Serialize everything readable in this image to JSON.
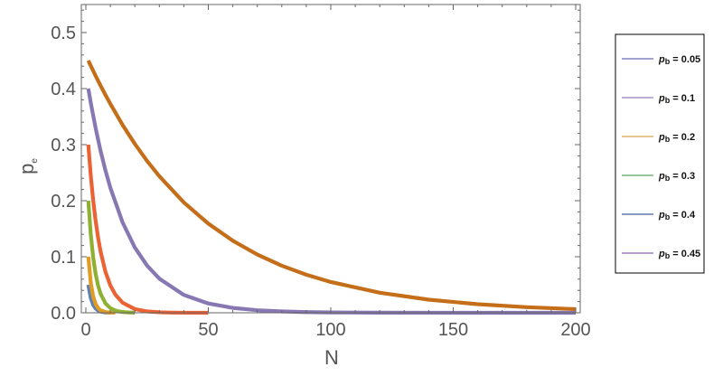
{
  "chart_data": {
    "type": "line",
    "xlabel": "N",
    "ylabel": {
      "main": "p",
      "sub": "e"
    },
    "xlim": [
      0,
      200
    ],
    "ylim": [
      0,
      0.55
    ],
    "x_ticks": [
      0,
      50,
      100,
      150,
      200
    ],
    "y_ticks": [
      0.0,
      0.1,
      0.2,
      0.3,
      0.4,
      0.5
    ],
    "x_tick_labels": [
      "0",
      "50",
      "100",
      "150",
      "200"
    ],
    "y_tick_labels": [
      "0.0",
      "0.1",
      "0.2",
      "0.3",
      "0.4",
      "0.5"
    ],
    "grid": false,
    "legend_position": "right",
    "legend_prefix": {
      "main": "p",
      "sub": "b"
    },
    "series": [
      {
        "label": " = 0.05",
        "pb": 0.05,
        "legend_color": "#6a6ab4",
        "line_color": "#5e81b5",
        "x": [
          1,
          2,
          3,
          4,
          5,
          6,
          8,
          10
        ],
        "y": [
          0.05,
          0.0263,
          0.0141,
          0.0076,
          0.0041,
          0.0022,
          0.0006,
          0.0002
        ]
      },
      {
        "label": " = 0.1",
        "pb": 0.1,
        "legend_color": "#9b7ec4",
        "line_color": "#e19c24",
        "x": [
          1,
          2,
          3,
          4,
          5,
          6,
          8,
          10,
          12
        ],
        "y": [
          0.1,
          0.0536,
          0.0288,
          0.0155,
          0.0083,
          0.0045,
          0.0013,
          0.0004,
          0.0001
        ]
      },
      {
        "label": " = 0.2",
        "pb": 0.2,
        "legend_color": "#d9a24e",
        "line_color": "#8fb032",
        "x": [
          1,
          2,
          3,
          4,
          5,
          6,
          8,
          10,
          12,
          14,
          16,
          18,
          20
        ],
        "y": [
          0.2,
          0.1404,
          0.0985,
          0.0691,
          0.0485,
          0.034,
          0.0168,
          0.0083,
          0.0041,
          0.002,
          0.001,
          0.0005,
          0.0002
        ]
      },
      {
        "label": " = 0.3",
        "pb": 0.3,
        "legend_color": "#5aa465",
        "line_color": "#eb6235",
        "x": [
          1,
          2,
          3,
          4,
          5,
          6,
          8,
          10,
          12,
          15,
          20,
          25,
          30,
          35,
          40,
          50
        ],
        "y": [
          0.3,
          0.2452,
          0.2004,
          0.1638,
          0.1339,
          0.1094,
          0.0731,
          0.0488,
          0.0326,
          0.0179,
          0.0066,
          0.0024,
          0.0009,
          0.0003,
          0.0001,
          0.0
        ]
      },
      {
        "label": " = 0.4",
        "pb": 0.4,
        "legend_color": "#3f5ea0",
        "line_color": "#8778b3",
        "x": [
          1,
          2,
          4,
          6,
          8,
          10,
          15,
          20,
          25,
          30,
          40,
          50,
          60,
          70,
          80,
          90,
          100,
          120,
          140,
          160,
          180,
          200
        ],
        "y": [
          0.4,
          0.3748,
          0.3292,
          0.2891,
          0.2539,
          0.223,
          0.1612,
          0.1165,
          0.0842,
          0.0609,
          0.0318,
          0.0166,
          0.0087,
          0.0045,
          0.0024,
          0.0012,
          0.0006,
          0.0002,
          0.0001,
          0.0,
          0.0,
          0.0
        ]
      },
      {
        "label": " = 0.45",
        "pb": 0.45,
        "legend_color": "#8a63b0",
        "line_color": "#c56e1a",
        "x": [
          1,
          2,
          4,
          6,
          8,
          10,
          15,
          20,
          25,
          30,
          40,
          50,
          60,
          70,
          80,
          90,
          100,
          120,
          140,
          160,
          180,
          200
        ],
        "y": [
          0.45,
          0.4407,
          0.4226,
          0.4053,
          0.3887,
          0.3727,
          0.3351,
          0.3013,
          0.2709,
          0.2436,
          0.1969,
          0.1591,
          0.1286,
          0.1039,
          0.084,
          0.0679,
          0.0549,
          0.0358,
          0.0234,
          0.0153,
          0.01,
          0.0065
        ]
      }
    ]
  }
}
